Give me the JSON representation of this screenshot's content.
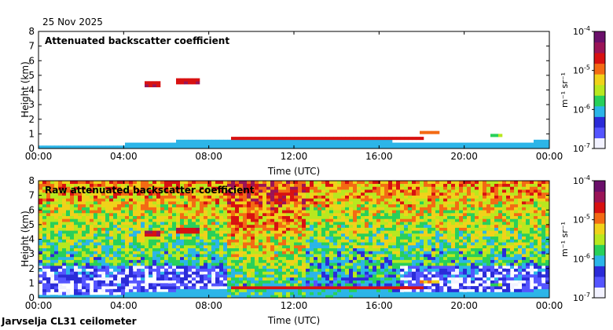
{
  "date": "25 Nov 2025",
  "instrument": "Jarvselja CL31 ceilometer",
  "colormap": [
    "#f2f2ff",
    "#5555ff",
    "#2b2bd8",
    "#2cb5e8",
    "#28d05a",
    "#b8e81f",
    "#f0d21a",
    "#f36a14",
    "#d81111",
    "#9a1457",
    "#6a0f6a"
  ],
  "chart_data": [
    {
      "type": "heatmap",
      "title": "Attenuated backscatter coefficient",
      "xlabel": "Time (UTC)",
      "ylabel": "Height (km)",
      "x_ticks": [
        "00:00",
        "04:00",
        "08:00",
        "12:00",
        "16:00",
        "20:00",
        "00:00"
      ],
      "xlim": [
        0,
        24
      ],
      "y_ticks": [
        "0",
        "1",
        "2",
        "3",
        "4",
        "5",
        "6",
        "7",
        "8"
      ],
      "ylim": [
        0,
        8
      ],
      "colorbar": {
        "label": "m⁻¹ sr⁻¹",
        "scale": "log",
        "range": [
          1e-07,
          0.0001
        ],
        "tick_exponents": [
          "-7",
          "-6",
          "-5",
          "-4"
        ]
      },
      "mode": "cloud",
      "features": [
        {
          "name": "surface layer",
          "t0": 0,
          "t1": 24,
          "h_profile": [
            [
              0,
              0.15
            ],
            [
              4,
              0.3
            ],
            [
              9,
              0.7
            ],
            [
              12,
              0.7
            ],
            [
              15,
              0.85
            ],
            [
              17,
              0.4
            ],
            [
              20,
              0.3
            ],
            [
              22,
              0.4
            ],
            [
              24,
              0.55
            ]
          ],
          "level": 0.35
        },
        {
          "name": "cloud base",
          "t0": 9,
          "t1": 18,
          "h": 0.7,
          "level": 0.85
        },
        {
          "name": "mid cloud 1",
          "t0": 5.0,
          "t1": 5.8,
          "h": 4.4,
          "level": 0.88
        },
        {
          "name": "mid cloud 2",
          "t0": 6.5,
          "t1": 7.6,
          "h": 4.6,
          "level": 0.88
        },
        {
          "name": "convective plume",
          "t0": 18.0,
          "t1": 18.8,
          "h": 1.1,
          "level": 0.7
        },
        {
          "name": "small cloud",
          "t0": 21.2,
          "t1": 21.8,
          "h": 0.9,
          "level": 0.5
        }
      ]
    },
    {
      "type": "heatmap",
      "title": "Raw attenuated backscatter coefficient",
      "xlabel": "Time (UTC)",
      "ylabel": "Height (km)",
      "x_ticks": [
        "00:00",
        "04:00",
        "08:00",
        "12:00",
        "16:00",
        "20:00",
        "00:00"
      ],
      "xlim": [
        0,
        24
      ],
      "y_ticks": [
        "0",
        "1",
        "2",
        "3",
        "4",
        "5",
        "6",
        "7",
        "8"
      ],
      "ylim": [
        0,
        8
      ],
      "colorbar": {
        "label": "m⁻¹ sr⁻¹",
        "scale": "log",
        "range": [
          1e-07,
          0.0001
        ],
        "tick_exponents": [
          "-7",
          "-6",
          "-5",
          "-4"
        ]
      },
      "mode": "noise",
      "features": [
        {
          "name": "surface layer",
          "t0": 0,
          "t1": 24,
          "h_profile": [
            [
              0,
              0.15
            ],
            [
              4,
              0.3
            ],
            [
              9,
              0.7
            ],
            [
              12,
              0.7
            ],
            [
              15,
              0.85
            ],
            [
              17,
              0.4
            ],
            [
              20,
              0.3
            ],
            [
              22,
              0.4
            ],
            [
              24,
              0.55
            ]
          ],
          "level": 0.35
        },
        {
          "name": "cloud base",
          "t0": 9,
          "t1": 18,
          "h": 0.7,
          "level": 0.85
        },
        {
          "name": "mid cloud 1",
          "t0": 5.0,
          "t1": 5.8,
          "h": 4.4,
          "level": 0.88
        },
        {
          "name": "mid cloud 2",
          "t0": 6.5,
          "t1": 7.6,
          "h": 4.6,
          "level": 0.88
        },
        {
          "name": "convective plume",
          "t0": 18.0,
          "t1": 18.8,
          "h": 1.1,
          "level": 0.7
        },
        {
          "name": "small cloud",
          "t0": 21.2,
          "t1": 21.8,
          "h": 0.9,
          "level": 0.5
        }
      ]
    }
  ]
}
